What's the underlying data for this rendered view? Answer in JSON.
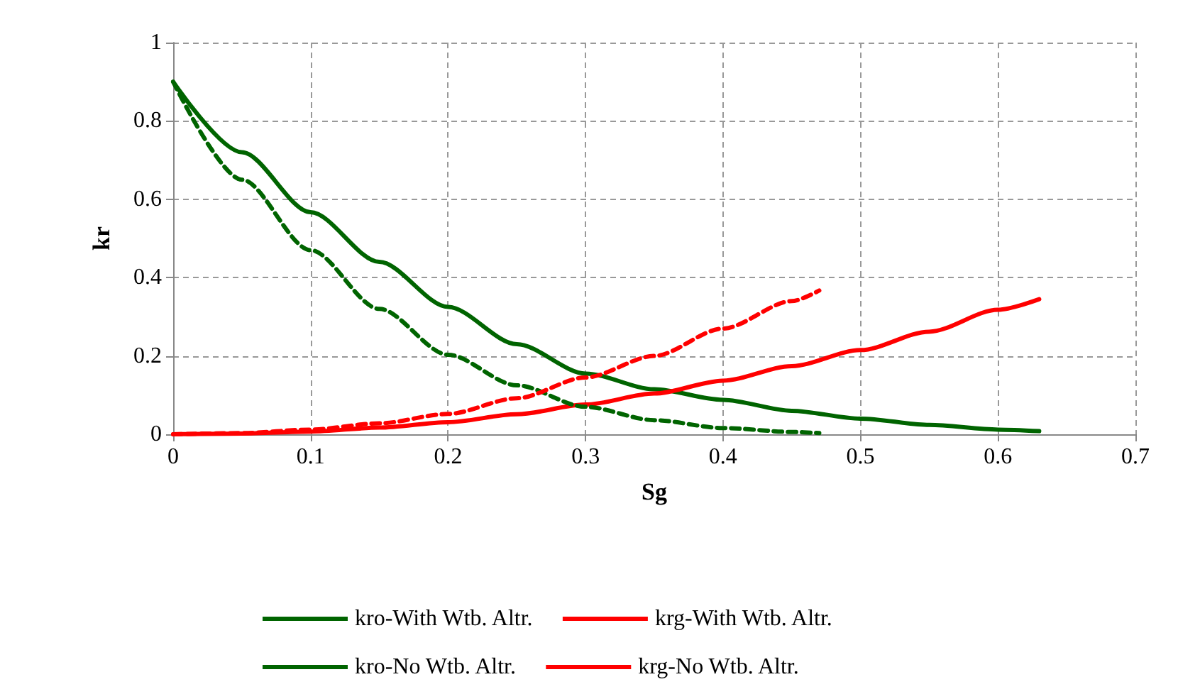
{
  "chart_data": {
    "type": "line",
    "xlabel": "Sg",
    "ylabel": "kr",
    "xlim": [
      0,
      0.7
    ],
    "xticks": [
      0,
      0.1,
      0.2,
      0.3,
      0.4,
      0.5,
      0.6,
      0.7
    ],
    "ylim": [
      0,
      1
    ],
    "yticks": [
      0,
      0.2,
      0.4,
      0.6,
      0.8,
      1
    ],
    "grid": true,
    "legend": "bottom",
    "marker": "none",
    "series": [
      {
        "name": "kro-With Wtb. Altr.",
        "color": "#006400",
        "line_style": "solid",
        "x": [
          0,
          0.05,
          0.1,
          0.15,
          0.2,
          0.25,
          0.3,
          0.35,
          0.4,
          0.45,
          0.5,
          0.55,
          0.6,
          0.63
        ],
        "values": [
          0.9,
          0.72,
          0.567,
          0.44,
          0.325,
          0.23,
          0.155,
          0.115,
          0.088,
          0.06,
          0.04,
          0.024,
          0.012,
          0.008
        ]
      },
      {
        "name": "krg-With Wtb. Altr.",
        "color": "#ff0000",
        "line_style": "solid",
        "x": [
          0,
          0.05,
          0.1,
          0.15,
          0.2,
          0.25,
          0.3,
          0.35,
          0.4,
          0.45,
          0.5,
          0.55,
          0.6,
          0.63
        ],
        "values": [
          0,
          0.002,
          0.007,
          0.017,
          0.031,
          0.051,
          0.076,
          0.104,
          0.137,
          0.174,
          0.215,
          0.262,
          0.318,
          0.345
        ]
      },
      {
        "name": "kro-No Wtb. Altr.",
        "color": "#006400",
        "line_style": "dashed",
        "x": [
          0,
          0.05,
          0.1,
          0.15,
          0.2,
          0.25,
          0.3,
          0.35,
          0.4,
          0.45,
          0.47
        ],
        "values": [
          0.9,
          0.65,
          0.47,
          0.32,
          0.203,
          0.125,
          0.07,
          0.036,
          0.016,
          0.006,
          0.003
        ]
      },
      {
        "name": "krg-No Wtb. Altr.",
        "color": "#ff0000",
        "line_style": "dashed",
        "x": [
          0,
          0.05,
          0.1,
          0.15,
          0.2,
          0.25,
          0.3,
          0.35,
          0.4,
          0.45,
          0.47
        ],
        "values": [
          0,
          0.003,
          0.012,
          0.028,
          0.052,
          0.092,
          0.145,
          0.2,
          0.27,
          0.34,
          0.367
        ]
      }
    ]
  }
}
